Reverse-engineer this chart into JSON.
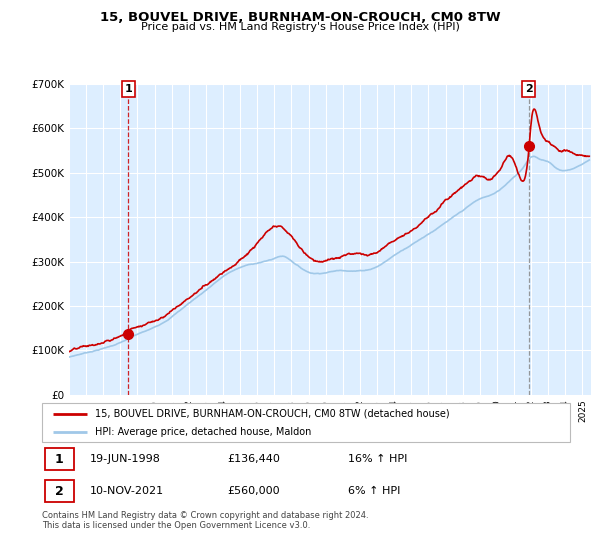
{
  "title": "15, BOUVEL DRIVE, BURNHAM-ON-CROUCH, CM0 8TW",
  "subtitle": "Price paid vs. HM Land Registry's House Price Index (HPI)",
  "legend_line1": "15, BOUVEL DRIVE, BURNHAM-ON-CROUCH, CM0 8TW (detached house)",
  "legend_line2": "HPI: Average price, detached house, Maldon",
  "sale1_date": "19-JUN-1998",
  "sale1_price": "£136,440",
  "sale1_hpi": "16% ↑ HPI",
  "sale2_date": "10-NOV-2021",
  "sale2_price": "£560,000",
  "sale2_hpi": "6% ↑ HPI",
  "footer": "Contains HM Land Registry data © Crown copyright and database right 2024.\nThis data is licensed under the Open Government Licence v3.0.",
  "hpi_color": "#a0c8e8",
  "price_color": "#cc0000",
  "bg_color": "#ddeeff",
  "ylim": [
    0,
    700000
  ],
  "yticks": [
    0,
    100000,
    200000,
    300000,
    400000,
    500000,
    600000,
    700000
  ],
  "sale1_year": 1998.47,
  "sale2_year": 2021.86,
  "sale1_value": 136440,
  "sale2_value": 560000,
  "xlim_left": 1995.0,
  "xlim_right": 2025.5
}
